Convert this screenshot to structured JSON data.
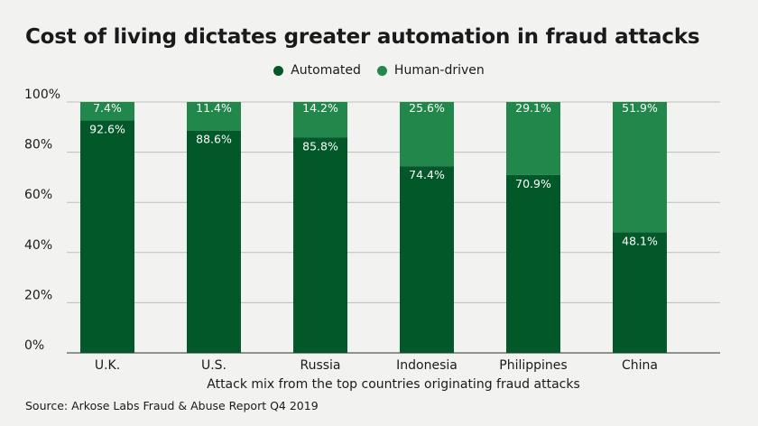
{
  "colors": {
    "automated": "#03582a",
    "human": "#21874a",
    "grid": "#bdbdbd",
    "axis": "#555555",
    "label": "#ffffff"
  },
  "source": "Source: Arkose Labs Fraud & Abuse Report Q4 2019",
  "chart_data": {
    "type": "bar",
    "stacked": true,
    "title": "Cost of living dictates greater automation in fraud attacks",
    "xlabel": "Attack mix from the top countries originating fraud attacks",
    "ylabel": "",
    "ylim": [
      0,
      100
    ],
    "yticks": [
      "0%",
      "20%",
      "40%",
      "60%",
      "80%",
      "100%"
    ],
    "grid": true,
    "legend_position": "top-center",
    "categories": [
      "U.K.",
      "U.S.",
      "Russia",
      "Indonesia",
      "Philippines",
      "China"
    ],
    "series": [
      {
        "name": "Automated",
        "values": [
          92.6,
          88.6,
          85.8,
          74.4,
          70.9,
          48.1
        ],
        "labels": [
          "92.6%",
          "88.6%",
          "85.8%",
          "74.4%",
          "70.9%",
          "48.1%"
        ]
      },
      {
        "name": "Human-driven",
        "values": [
          7.4,
          11.4,
          14.2,
          25.6,
          29.1,
          51.9
        ],
        "labels": [
          "7.4%",
          "11.4%",
          "14.2%",
          "25.6%",
          "29.1%",
          "51.9%"
        ]
      }
    ]
  }
}
